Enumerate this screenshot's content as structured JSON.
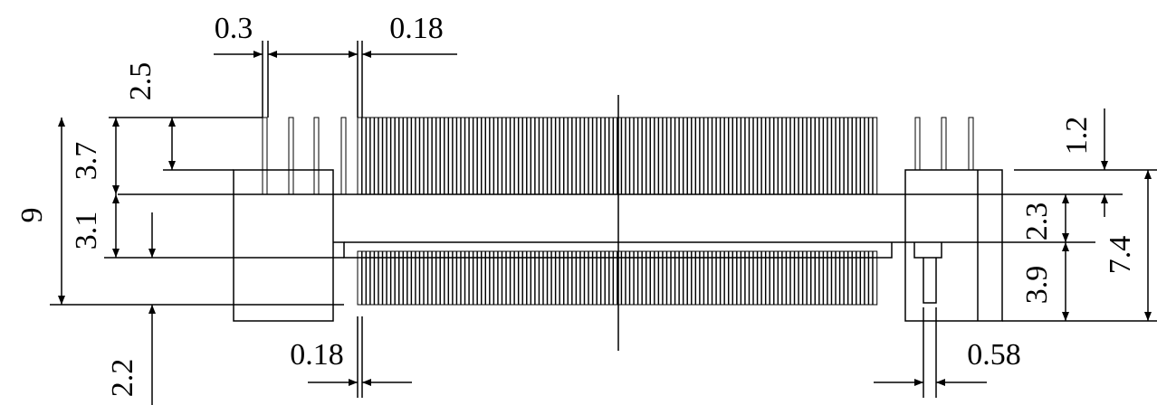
{
  "labels": [
    "0.3",
    "0.18",
    "2.5",
    "9",
    "3.7",
    "3.1",
    "2.2",
    "0.18",
    "1.2",
    "2.3",
    "7.4",
    "3.9",
    "0.58"
  ]
}
